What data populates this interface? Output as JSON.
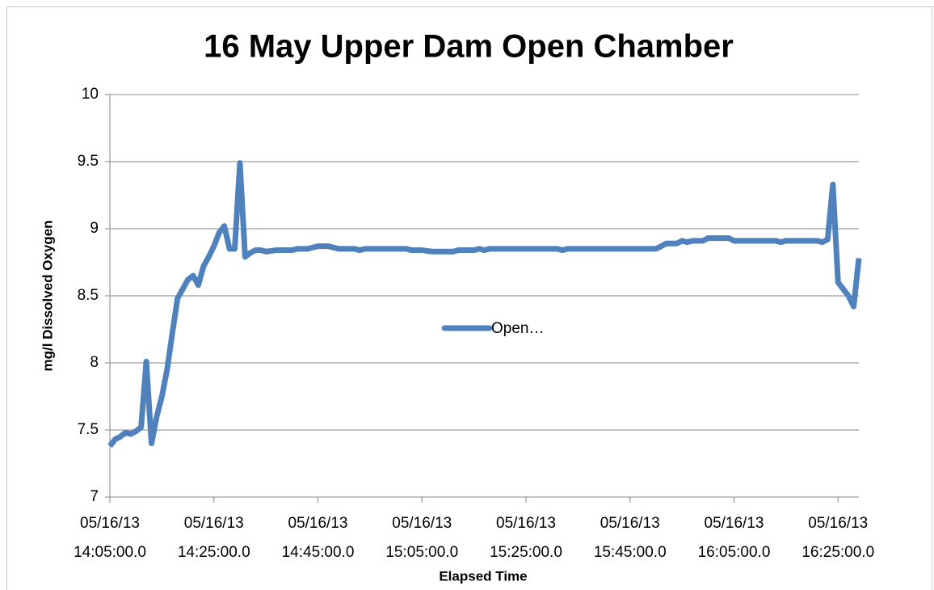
{
  "chart_data": {
    "type": "line",
    "title": "16 May Upper Dam Open Chamber",
    "x_label": "Elapsed Time",
    "y_label": "mg/l Dissolved Oxygen",
    "x": [
      "05/16/13 14:05:00.0",
      "05/16/13 14:06:00.0",
      "05/16/13 14:07:00.0",
      "05/16/13 14:08:00.0",
      "05/16/13 14:09:00.0",
      "05/16/13 14:10:00.0",
      "05/16/13 14:11:00.0",
      "05/16/13 14:12:00.0",
      "05/16/13 14:13:00.0",
      "05/16/13 14:14:00.0",
      "05/16/13 14:15:00.0",
      "05/16/13 14:16:00.0",
      "05/16/13 14:17:00.0",
      "05/16/13 14:18:00.0",
      "05/16/13 14:19:00.0",
      "05/16/13 14:20:00.0",
      "05/16/13 14:21:00.0",
      "05/16/13 14:22:00.0",
      "05/16/13 14:23:00.0",
      "05/16/13 14:24:00.0",
      "05/16/13 14:25:00.0",
      "05/16/13 14:26:00.0",
      "05/16/13 14:27:00.0",
      "05/16/13 14:28:00.0",
      "05/16/13 14:29:00.0",
      "05/16/13 14:30:00.0",
      "05/16/13 14:31:00.0",
      "05/16/13 14:32:00.0",
      "05/16/13 14:33:00.0",
      "05/16/13 14:34:00.0",
      "05/16/13 14:35:00.0",
      "05/16/13 14:37:00.0",
      "05/16/13 14:40:00.0",
      "05/16/13 14:41:00.0",
      "05/16/13 14:43:00.0",
      "05/16/13 14:45:00.0",
      "05/16/13 14:47:00.0",
      "05/16/13 14:49:00.0",
      "05/16/13 14:52:00.0",
      "05/16/13 14:53:00.0",
      "05/16/13 14:54:00.0",
      "05/16/13 15:00:00.0",
      "05/16/13 15:02:00.0",
      "05/16/13 15:03:00.0",
      "05/16/13 15:05:00.0",
      "05/16/13 15:07:00.0",
      "05/16/13 15:11:00.0",
      "05/16/13 15:12:00.0",
      "05/16/13 15:15:00.0",
      "05/16/13 15:16:00.0",
      "05/16/13 15:17:00.0",
      "05/16/13 15:18:00.0",
      "05/16/13 15:31:00.0",
      "05/16/13 15:32:00.0",
      "05/16/13 15:33:00.0",
      "05/16/13 15:50:00.0",
      "05/16/13 15:51:00.0",
      "05/16/13 15:52:00.0",
      "05/16/13 15:54:00.0",
      "05/16/13 15:55:00.0",
      "05/16/13 15:56:00.0",
      "05/16/13 15:57:00.0",
      "05/16/13 15:59:00.0",
      "05/16/13 16:00:00.0",
      "05/16/13 16:04:00.0",
      "05/16/13 16:05:00.0",
      "05/16/13 16:13:00.0",
      "05/16/13 16:14:00.0",
      "05/16/13 16:15:00.0",
      "05/16/13 16:21:00.0",
      "05/16/13 16:22:00.0",
      "05/16/13 16:23:00.0",
      "05/16/13 16:24:00.0",
      "05/16/13 16:25:00.0",
      "05/16/13 16:26:00.0",
      "05/16/13 16:27:00.0",
      "05/16/13 16:28:00.0",
      "05/16/13 16:29:00.0"
    ],
    "series": [
      {
        "name": "Open…",
        "color": "#4f81bd",
        "values": [
          7.38,
          7.43,
          7.45,
          7.48,
          7.47,
          7.49,
          7.52,
          8.01,
          7.4,
          7.6,
          7.75,
          7.95,
          8.22,
          8.48,
          8.55,
          8.62,
          8.65,
          8.58,
          8.72,
          8.79,
          8.87,
          8.97,
          9.02,
          8.85,
          8.85,
          9.49,
          8.79,
          8.82,
          8.84,
          8.84,
          8.83,
          8.84,
          8.84,
          8.85,
          8.85,
          8.87,
          8.87,
          8.85,
          8.85,
          8.84,
          8.85,
          8.85,
          8.85,
          8.84,
          8.84,
          8.83,
          8.83,
          8.84,
          8.84,
          8.85,
          8.84,
          8.85,
          8.85,
          8.84,
          8.85,
          8.85,
          8.87,
          8.89,
          8.89,
          8.91,
          8.9,
          8.91,
          8.91,
          8.93,
          8.93,
          8.91,
          8.91,
          8.9,
          8.91,
          8.91,
          8.9,
          8.92,
          9.33,
          8.6,
          8.55,
          8.5,
          8.42,
          8.78
        ]
      }
    ],
    "xlim": [
      "05/16/13 14:05:00.0",
      "05/16/13 16:29:00.0"
    ],
    "xticks": [
      "05/16/13 14:05:00.0",
      "05/16/13 14:25:00.0",
      "05/16/13 14:45:00.0",
      "05/16/13 15:05:00.0",
      "05/16/13 15:25:00.0",
      "05/16/13 15:45:00.0",
      "05/16/13 16:05:00.0",
      "05/16/13 16:25:00.0"
    ],
    "ylim": [
      7,
      10
    ],
    "yticks": [
      7,
      7.5,
      8,
      8.5,
      9,
      9.5,
      10
    ],
    "grid": true,
    "legend": "center"
  }
}
